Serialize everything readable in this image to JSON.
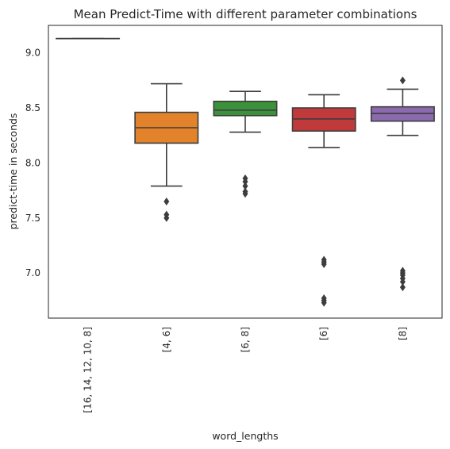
{
  "chart_data": {
    "type": "box",
    "title": "Mean Predict-Time with different parameter combinations",
    "xlabel": "word_lengths",
    "ylabel": "predict-time in seconds",
    "ylim": [
      6.59,
      9.25
    ],
    "yticks": [
      "7.0",
      "7.5",
      "8.0",
      "8.5",
      "9.0"
    ],
    "grid": false,
    "legend": "none",
    "categories": [
      "[16, 14, 12, 10, 8]",
      "[4, 6]",
      "[6, 8]",
      "[6]",
      "[8]"
    ],
    "boxes": [
      {
        "category": "[16, 14, 12, 10, 8]",
        "color": "#3a74b1",
        "whislo": 9.13,
        "q1": 9.13,
        "med": 9.13,
        "q3": 9.13,
        "whishi": 9.13,
        "fliers": []
      },
      {
        "category": "[4, 6]",
        "color": "#e2832b",
        "whislo": 7.79,
        "q1": 8.18,
        "med": 8.32,
        "q3": 8.46,
        "whishi": 8.72,
        "fliers": [
          7.65,
          7.53,
          7.5
        ]
      },
      {
        "category": "[6, 8]",
        "color": "#3b923b",
        "whislo": 8.28,
        "q1": 8.43,
        "med": 8.48,
        "q3": 8.56,
        "whishi": 8.65,
        "fliers": [
          7.86,
          7.83,
          7.79,
          7.74,
          7.72
        ]
      },
      {
        "category": "[6]",
        "color": "#c13a3b",
        "whislo": 8.14,
        "q1": 8.29,
        "med": 8.4,
        "q3": 8.5,
        "whishi": 8.62,
        "fliers": [
          7.12,
          7.1,
          7.08,
          6.77,
          6.75,
          6.73
        ]
      },
      {
        "category": "[8]",
        "color": "#8b6bae",
        "whislo": 8.25,
        "q1": 8.38,
        "med": 8.45,
        "q3": 8.51,
        "whishi": 8.67,
        "fliers": [
          8.75,
          7.02,
          7.0,
          6.98,
          6.95,
          6.92,
          6.87
        ]
      }
    ]
  }
}
